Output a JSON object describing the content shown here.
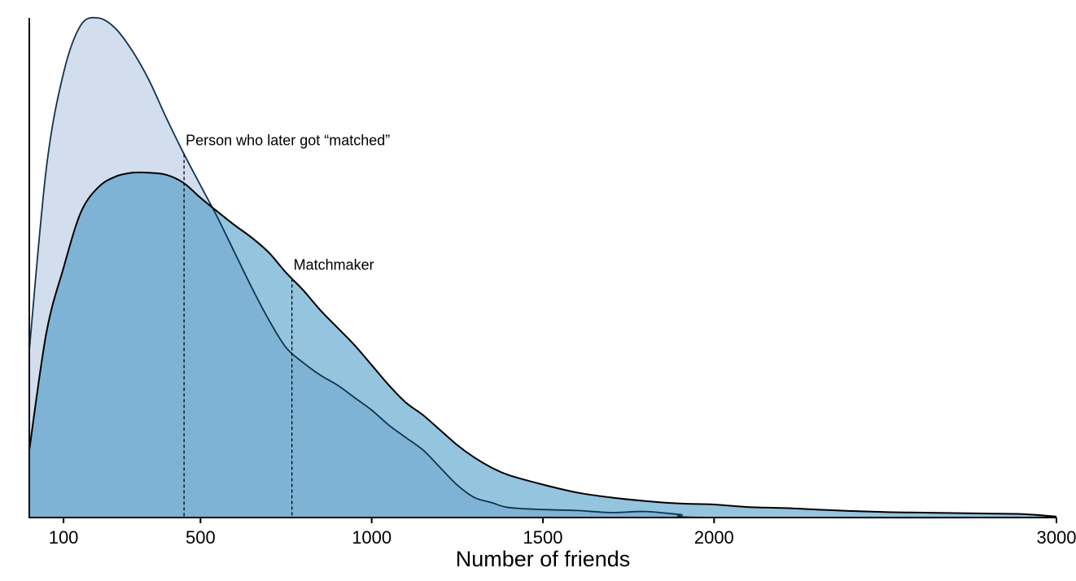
{
  "chart_data": {
    "type": "area",
    "xlabel": "Number of friends",
    "ylabel": "",
    "xlim": [
      0,
      3000
    ],
    "x_ticks": [
      {
        "value": 100,
        "label": "100"
      },
      {
        "value": 500,
        "label": "500"
      },
      {
        "value": 1000,
        "label": "1000"
      },
      {
        "value": 1500,
        "label": "1500"
      },
      {
        "value": 2000,
        "label": "2000"
      },
      {
        "value": 3000,
        "label": "3000"
      }
    ],
    "y_ticks": [],
    "grid": false,
    "legend": "none",
    "series": [
      {
        "role": "back",
        "color": "#d2deee",
        "points": [
          [
            0,
            0.335
          ],
          [
            50,
            0.7
          ],
          [
            100,
            0.89
          ],
          [
            150,
            0.985
          ],
          [
            200,
            1.0
          ],
          [
            250,
            0.98
          ],
          [
            300,
            0.935
          ],
          [
            350,
            0.875
          ],
          [
            400,
            0.8
          ],
          [
            450,
            0.73
          ],
          [
            500,
            0.665
          ],
          [
            550,
            0.6
          ],
          [
            600,
            0.53
          ],
          [
            650,
            0.46
          ],
          [
            700,
            0.395
          ],
          [
            750,
            0.34
          ],
          [
            800,
            0.31
          ],
          [
            850,
            0.285
          ],
          [
            900,
            0.265
          ],
          [
            950,
            0.24
          ],
          [
            1000,
            0.215
          ],
          [
            1050,
            0.185
          ],
          [
            1100,
            0.16
          ],
          [
            1150,
            0.135
          ],
          [
            1200,
            0.1
          ],
          [
            1250,
            0.065
          ],
          [
            1300,
            0.04
          ],
          [
            1350,
            0.03
          ],
          [
            1400,
            0.02
          ],
          [
            1500,
            0.016
          ],
          [
            1600,
            0.014
          ],
          [
            1700,
            0.01
          ],
          [
            1800,
            0.012
          ],
          [
            1900,
            0.006
          ],
          [
            2000,
            0.0
          ],
          [
            3000,
            0.0
          ]
        ]
      },
      {
        "role": "front",
        "color": "#94c4de",
        "overlap_color": "#7fb3d5",
        "points": [
          [
            0,
            0.135
          ],
          [
            50,
            0.37
          ],
          [
            100,
            0.5
          ],
          [
            150,
            0.61
          ],
          [
            200,
            0.66
          ],
          [
            250,
            0.682
          ],
          [
            300,
            0.69
          ],
          [
            350,
            0.69
          ],
          [
            400,
            0.686
          ],
          [
            450,
            0.67
          ],
          [
            500,
            0.64
          ],
          [
            550,
            0.612
          ],
          [
            600,
            0.585
          ],
          [
            650,
            0.56
          ],
          [
            700,
            0.53
          ],
          [
            750,
            0.49
          ],
          [
            800,
            0.455
          ],
          [
            850,
            0.415
          ],
          [
            900,
            0.38
          ],
          [
            950,
            0.345
          ],
          [
            1000,
            0.305
          ],
          [
            1050,
            0.265
          ],
          [
            1100,
            0.23
          ],
          [
            1150,
            0.205
          ],
          [
            1200,
            0.175
          ],
          [
            1250,
            0.145
          ],
          [
            1300,
            0.12
          ],
          [
            1350,
            0.1
          ],
          [
            1400,
            0.085
          ],
          [
            1500,
            0.066
          ],
          [
            1600,
            0.05
          ],
          [
            1700,
            0.04
          ],
          [
            1800,
            0.033
          ],
          [
            1900,
            0.028
          ],
          [
            2000,
            0.026
          ],
          [
            2100,
            0.021
          ],
          [
            2200,
            0.019
          ],
          [
            2300,
            0.016
          ],
          [
            2400,
            0.013
          ],
          [
            2500,
            0.011
          ],
          [
            2600,
            0.01
          ],
          [
            2700,
            0.009
          ],
          [
            2800,
            0.008
          ],
          [
            2900,
            0.007
          ],
          [
            3000,
            0.002
          ]
        ]
      }
    ],
    "annotations": [
      {
        "text": "Person who later got “matched”",
        "x": 452,
        "series_role": "back"
      },
      {
        "text": "Matchmaker",
        "x": 767,
        "series_role": "front"
      }
    ]
  }
}
